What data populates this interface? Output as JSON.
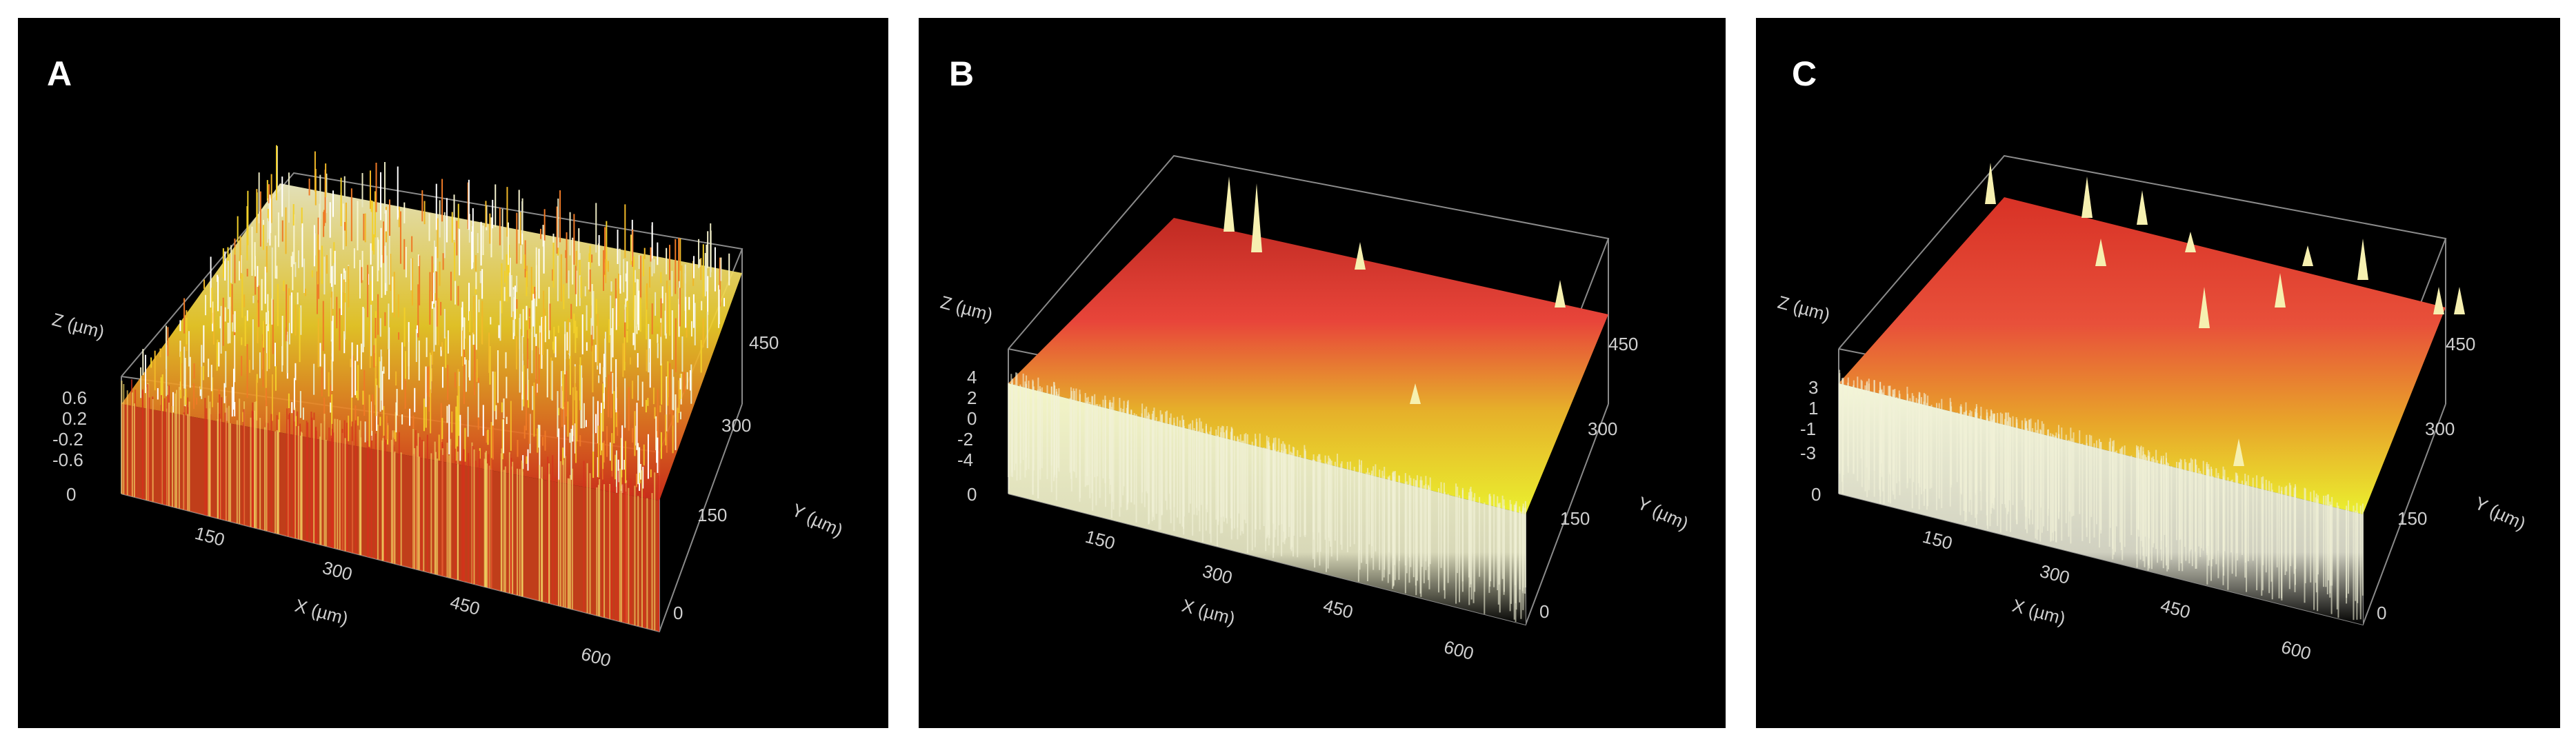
{
  "panels": [
    {
      "label": "A",
      "z_axis_label": "Z (µm)",
      "z_ticks": [
        "0.6",
        "0.2",
        "-0.2",
        "-0.6"
      ],
      "origin_label": "0",
      "x_axis_label": "X (µm)",
      "x_ticks": [
        "150",
        "300",
        "450",
        "600"
      ],
      "y_axis_label": "Y (µm)",
      "y_ticks": [
        "450",
        "300",
        "150",
        "0"
      ],
      "surface": "high roughness, dense spikes",
      "colors": {
        "low": "#e0301e",
        "mid": "#f2d02a",
        "high": "#f6f6e6"
      }
    },
    {
      "label": "B",
      "z_axis_label": "Z (µm)",
      "z_ticks": [
        "4",
        "2",
        "0",
        "-2",
        "-4"
      ],
      "origin_label": "0",
      "x_axis_label": "X (µm)",
      "x_ticks": [
        "150",
        "300",
        "450",
        "600"
      ],
      "y_axis_label": "Y (µm)",
      "y_ticks": [
        "450",
        "300",
        "150",
        "0"
      ],
      "surface": "smoother, red back region with few peaks",
      "colors": {
        "low": "#e0301e",
        "mid": "#f2d02a",
        "high": "#f6f6e6"
      }
    },
    {
      "label": "C",
      "z_axis_label": "Z (µm)",
      "z_ticks": [
        "3",
        "1",
        "-1",
        "-3"
      ],
      "origin_label": "0",
      "x_axis_label": "X (µm)",
      "x_ticks": [
        "150",
        "300",
        "450",
        "600"
      ],
      "y_axis_label": "Y (µm)",
      "y_ticks": [
        "450",
        "300",
        "150",
        "0"
      ],
      "surface": "smoother, red back region with several sharp peaks",
      "colors": {
        "low": "#e0301e",
        "mid": "#f2d02a",
        "high": "#f6f6e6"
      }
    }
  ]
}
